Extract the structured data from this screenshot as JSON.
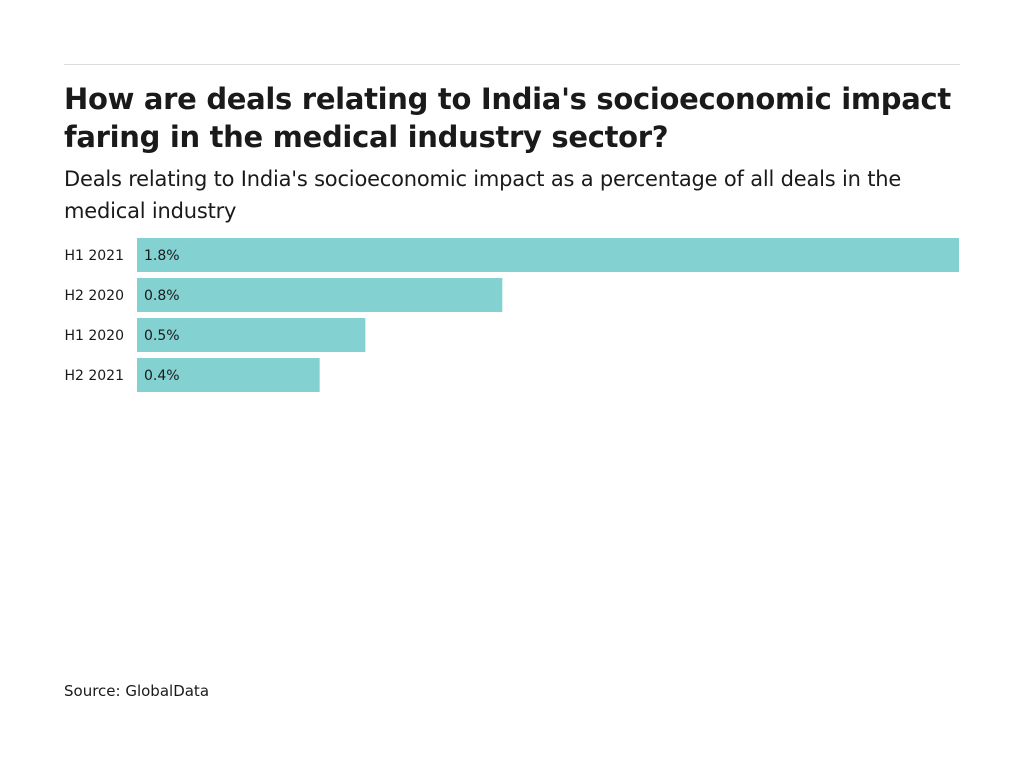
{
  "chart_data": {
    "type": "bar",
    "orientation": "horizontal",
    "title": "How are deals relating to India's socioeconomic impact faring in the medical industry sector?",
    "subtitle": "Deals relating to India's socioeconomic impact as a percentage of all deals in the medical industry",
    "categories": [
      "H1 2021",
      "H2 2020",
      "H1 2020",
      "H2 2021"
    ],
    "values": [
      1.8,
      0.8,
      0.5,
      0.4
    ],
    "value_labels": [
      "1.8%",
      "0.8%",
      "0.5%",
      "0.4%"
    ],
    "xlim": [
      0,
      1.8
    ],
    "xlabel": "",
    "ylabel": "",
    "grid": false,
    "bar_color": "#84d1d1",
    "source": "Source: GlobalData"
  }
}
